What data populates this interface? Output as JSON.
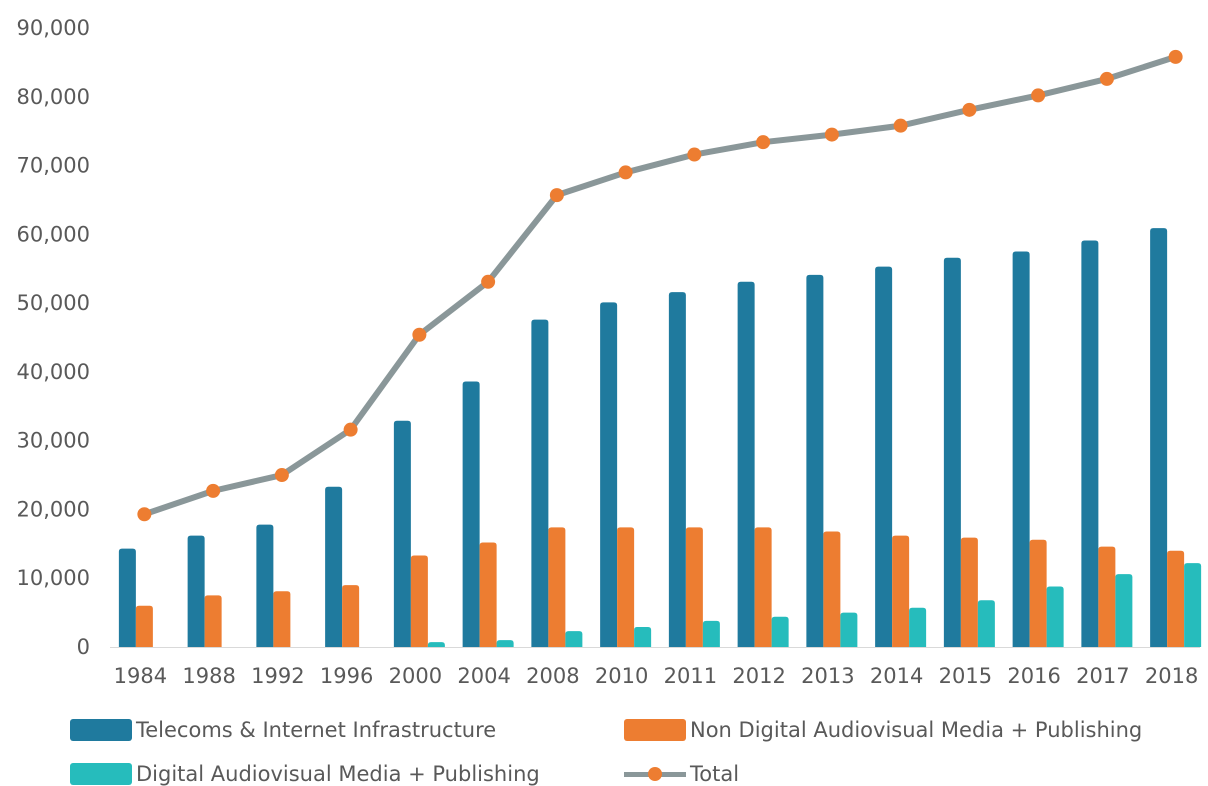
{
  "chart_data": {
    "type": "bar",
    "categories": [
      "1984",
      "1988",
      "1992",
      "1996",
      "2000",
      "2004",
      "2008",
      "2010",
      "2011",
      "2012",
      "2013",
      "2014",
      "2015",
      "2016",
      "2017",
      "2018"
    ],
    "ylim": [
      0,
      90000
    ],
    "yticks": [
      "0",
      "10,000",
      "20,000",
      "30,000",
      "40,000",
      "50,000",
      "60,000",
      "70,000",
      "80,000",
      "90,000"
    ],
    "grid": false,
    "legend_position": "bottom",
    "series": [
      {
        "name": "Telecoms & Internet Infrastructure",
        "kind": "bar",
        "color": "#1f7a9e",
        "values": [
          14300,
          16200,
          17800,
          23300,
          32900,
          38600,
          47600,
          50100,
          51600,
          53100,
          54100,
          55300,
          56600,
          57500,
          59100,
          60900
        ]
      },
      {
        "name": "Non Digital Audiovisual Media + Publishing",
        "kind": "bar",
        "color": "#ed7d31",
        "values": [
          6000,
          7500,
          8100,
          9000,
          13300,
          15200,
          17400,
          17400,
          17400,
          17400,
          16800,
          16200,
          15900,
          15600,
          14600,
          14000
        ]
      },
      {
        "name": "Digital Audiovisual Media + Publishing",
        "kind": "bar",
        "color": "#26bcbc",
        "values": [
          0,
          0,
          0,
          0,
          700,
          1000,
          2300,
          2900,
          3800,
          4400,
          5000,
          5700,
          6800,
          8800,
          10600,
          12200
        ]
      },
      {
        "name": "Total",
        "kind": "line",
        "color": "#8a9799",
        "marker_color": "#ed7d31",
        "values": [
          19300,
          22700,
          25000,
          31600,
          45400,
          53100,
          65700,
          69000,
          71600,
          73400,
          74500,
          75800,
          78100,
          80200,
          82600,
          85800
        ]
      }
    ]
  }
}
